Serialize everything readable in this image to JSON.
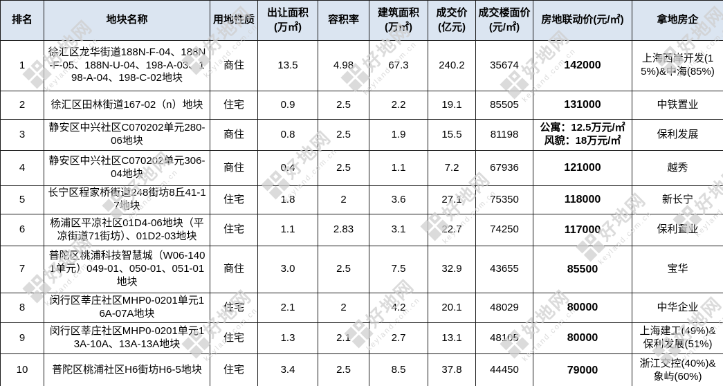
{
  "chart_data": {
    "type": "table",
    "title": "",
    "columns": [
      {
        "key": "rank",
        "label": "排名"
      },
      {
        "key": "name",
        "label": "地块名称"
      },
      {
        "key": "land_use",
        "label": "用地性质"
      },
      {
        "key": "transfer_area",
        "label": "出让面积\n(万㎡)"
      },
      {
        "key": "plot_ratio",
        "label": "容积率"
      },
      {
        "key": "building_area",
        "label": "建筑面积\n(万㎡)"
      },
      {
        "key": "deal_price",
        "label": "成交价\n(亿元)"
      },
      {
        "key": "floor_price",
        "label": "成交楼面价\n(元/㎡)"
      },
      {
        "key": "linkage_price",
        "label": "房地联动价(元/㎡)"
      },
      {
        "key": "developer",
        "label": "拿地房企"
      }
    ],
    "rows": [
      {
        "rank": "1",
        "name": "徐汇区龙华街道188N-F-04、188N-F-05、188N-U-04、198-A-03、198-A-04、198-C-02地块",
        "land_use": "商住",
        "transfer_area": "13.5",
        "plot_ratio": "4.98",
        "building_area": "67.3",
        "deal_price": "240.2",
        "floor_price": "35674",
        "linkage_price": "142000",
        "developer": "上海西岸开发(15%)&中海(85%)"
      },
      {
        "rank": "2",
        "name": "徐汇区田林街道167-02（n）地块",
        "land_use": "住宅",
        "transfer_area": "0.9",
        "plot_ratio": "2.5",
        "building_area": "2.2",
        "deal_price": "19.1",
        "floor_price": "85505",
        "linkage_price": "131000",
        "developer": "中铁置业"
      },
      {
        "rank": "3",
        "name": "静安区中兴社区C070202单元280-06地块",
        "land_use": "商住",
        "transfer_area": "0.8",
        "plot_ratio": "2.5",
        "building_area": "1.9",
        "deal_price": "15.5",
        "floor_price": "81198",
        "linkage_price": "公寓：12.5万元/㎡\n风貌：18万元/㎡",
        "developer": "保利发展"
      },
      {
        "rank": "4",
        "name": "静安区中兴社区C070202单元306-04地块",
        "land_use": "商住",
        "transfer_area": "0.4",
        "plot_ratio": "2.5",
        "building_area": "1.1",
        "deal_price": "7.2",
        "floor_price": "67936",
        "linkage_price": "121000",
        "developer": "越秀"
      },
      {
        "rank": "5",
        "name": "长宁区程家桥街道248街坊8丘41-17地块",
        "land_use": "住宅",
        "transfer_area": "1.8",
        "plot_ratio": "2",
        "building_area": "3.6",
        "deal_price": "27.1",
        "floor_price": "75350",
        "linkage_price": "118000",
        "developer": "新长宁"
      },
      {
        "rank": "6",
        "name": "杨浦区平凉社区01D4-06地块（平凉街道71街坊）、01D2-03地块",
        "land_use": "住宅",
        "transfer_area": "1.1",
        "plot_ratio": "2.83",
        "building_area": "3.1",
        "deal_price": "22.7",
        "floor_price": "74250",
        "linkage_price": "117000",
        "developer": "保利置业"
      },
      {
        "rank": "7",
        "name": "普陀区桃浦科技智慧城（W06-1401单元）049-01、050-01、051-01地块",
        "land_use": "商住",
        "transfer_area": "3.0",
        "plot_ratio": "2.5",
        "building_area": "7.5",
        "deal_price": "32.9",
        "floor_price": "43655",
        "linkage_price": "85500",
        "developer": "宝华"
      },
      {
        "rank": "8",
        "name": "闵行区莘庄社区MHP0-0201单元16A-07A地块",
        "land_use": "住宅",
        "transfer_area": "2.1",
        "plot_ratio": "2",
        "building_area": "4.2",
        "deal_price": "20.1",
        "floor_price": "48029",
        "linkage_price": "80000",
        "developer": "中华企业"
      },
      {
        "rank": "9",
        "name": "闵行区莘庄社区MHP0-0201单元13A-10A、13A-13A地块",
        "land_use": "住宅",
        "transfer_area": "1.3",
        "plot_ratio": "2.1",
        "building_area": "2.7",
        "deal_price": "13.1",
        "floor_price": "48105",
        "linkage_price": "80000",
        "developer": "上海建工(49%)&保利发展(51%)"
      },
      {
        "rank": "10",
        "name": "普陀区桃浦社区H6街坊H6-5地块",
        "land_use": "住宅",
        "transfer_area": "3.4",
        "plot_ratio": "2.5",
        "building_area": "8.5",
        "deal_price": "37.8",
        "floor_price": "44450",
        "linkage_price": "79000",
        "developer": "浙江交控(40%)&象屿(60%)"
      }
    ]
  },
  "watermark": {
    "brand": "好地网",
    "domain": "keyland.com.cn"
  },
  "colors": {
    "header_bg": "#dbe5f1",
    "border": "#1a1a1a",
    "text": "#000000",
    "watermark": "#cfcfcf"
  }
}
